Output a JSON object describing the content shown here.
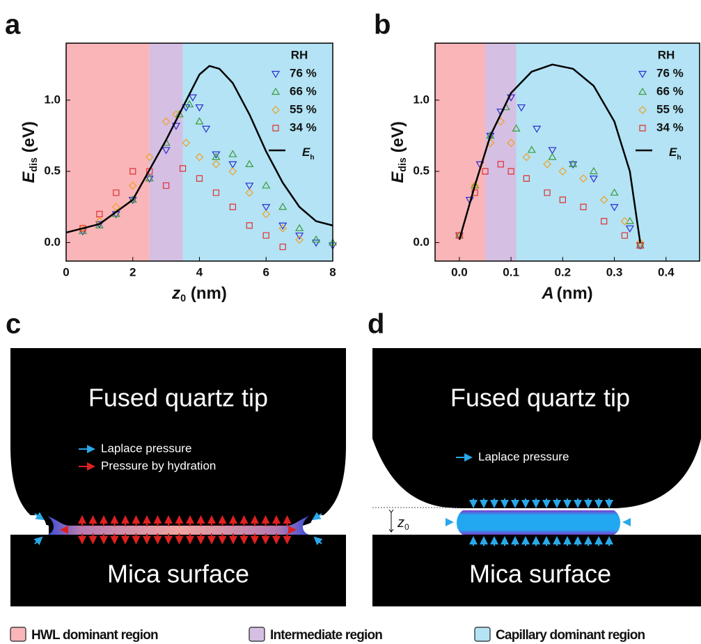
{
  "chart_data": [
    {
      "type": "scatter",
      "panel": "a",
      "x_label": "z0 (nm)",
      "y_label": "Edis (eV)",
      "xlim": [
        0,
        8
      ],
      "ylim": [
        -0.13,
        1.4
      ],
      "xticks": [
        0,
        2,
        4,
        6,
        8
      ],
      "yticks": [
        {
          "value": 0,
          "label": "0.0"
        },
        {
          "value": 0.5,
          "label": "0.5"
        },
        {
          "value": 1,
          "label": "1.0"
        }
      ],
      "regions": [
        [
          0,
          2.5
        ],
        [
          2.5,
          3.5
        ],
        [
          3.5,
          8
        ]
      ],
      "legend_title": "RH",
      "series": [
        {
          "name": "76 %",
          "color": "#2b2bd0",
          "marker": "triangle-down",
          "x": [
            0.5,
            1,
            1.5,
            2,
            2.5,
            3,
            3.3,
            3.6,
            3.8,
            4,
            4.2,
            4.5,
            5,
            5.5,
            6,
            6.5,
            7,
            7.5,
            8
          ],
          "values": [
            0.08,
            0.13,
            0.2,
            0.3,
            0.45,
            0.65,
            0.82,
            0.95,
            1.02,
            0.95,
            0.8,
            0.62,
            0.55,
            0.4,
            0.25,
            0.12,
            0.05,
            0,
            -0.02
          ]
        },
        {
          "name": "66 %",
          "color": "#3a9a3a",
          "marker": "triangle-up",
          "x": [
            0.5,
            1,
            1.5,
            2,
            2.5,
            3,
            3.4,
            3.7,
            4,
            4.5,
            5,
            5.5,
            6,
            6.5,
            7,
            7.5,
            8
          ],
          "values": [
            0.08,
            0.12,
            0.2,
            0.3,
            0.45,
            0.7,
            0.9,
            0.97,
            0.85,
            0.6,
            0.62,
            0.55,
            0.4,
            0.25,
            0.1,
            0.02,
            0
          ]
        },
        {
          "name": "55 %",
          "color": "#f0a020",
          "marker": "diamond",
          "x": [
            0.5,
            1,
            1.5,
            2,
            2.5,
            3,
            3.3,
            3.6,
            4,
            4.5,
            5,
            5.5,
            6,
            6.5,
            7
          ],
          "values": [
            0.1,
            0.15,
            0.25,
            0.4,
            0.6,
            0.85,
            0.9,
            0.7,
            0.6,
            0.55,
            0.5,
            0.35,
            0.2,
            0.1,
            0.02
          ]
        },
        {
          "name": "34 %",
          "color": "#e03030",
          "marker": "square",
          "x": [
            0.5,
            1,
            1.5,
            2,
            2.5,
            3,
            3.5,
            4,
            4.5,
            5,
            5.5,
            6,
            6.5
          ],
          "values": [
            0.1,
            0.2,
            0.35,
            0.5,
            0.5,
            0.4,
            0.52,
            0.45,
            0.35,
            0.25,
            0.12,
            0.05,
            -0.03
          ]
        },
        {
          "name": "Eh",
          "color": "#000000",
          "marker": "line",
          "x": [
            0,
            1,
            2,
            3,
            3.5,
            4,
            4.3,
            4.6,
            5,
            5.5,
            6,
            6.5,
            7,
            7.5,
            8
          ],
          "values": [
            0.07,
            0.13,
            0.3,
            0.72,
            0.95,
            1.18,
            1.24,
            1.22,
            1.12,
            0.9,
            0.64,
            0.42,
            0.25,
            0.15,
            0.12
          ]
        }
      ]
    },
    {
      "type": "scatter",
      "panel": "b",
      "x_label": "A (nm)",
      "y_label": "Edis (eV)",
      "xlim": [
        -0.047,
        0.465
      ],
      "ylim": [
        -0.13,
        1.4
      ],
      "xticks": [
        {
          "value": 0,
          "label": "0.0"
        },
        {
          "value": 0.1,
          "label": "0.1"
        },
        {
          "value": 0.2,
          "label": "0.2"
        },
        {
          "value": 0.3,
          "label": "0.3"
        },
        {
          "value": 0.4,
          "label": "0.4"
        }
      ],
      "yticks": [
        {
          "value": 0,
          "label": "0.0"
        },
        {
          "value": 0.5,
          "label": "0.5"
        },
        {
          "value": 1,
          "label": "1.0"
        }
      ],
      "regions": [
        [
          -0.047,
          0.05
        ],
        [
          0.05,
          0.11
        ],
        [
          0.11,
          0.465
        ]
      ],
      "legend_title": "RH",
      "series": [
        {
          "name": "76 %",
          "color": "#2b2bd0",
          "marker": "triangle-down",
          "x": [
            0,
            0.02,
            0.04,
            0.06,
            0.08,
            0.1,
            0.12,
            0.15,
            0.18,
            0.22,
            0.26,
            0.3,
            0.33,
            0.35
          ],
          "values": [
            0.05,
            0.3,
            0.55,
            0.75,
            0.92,
            1.02,
            0.95,
            0.8,
            0.65,
            0.55,
            0.45,
            0.25,
            0.1,
            -0.02
          ]
        },
        {
          "name": "66 %",
          "color": "#3a9a3a",
          "marker": "triangle-up",
          "x": [
            0,
            0.03,
            0.06,
            0.09,
            0.11,
            0.14,
            0.18,
            0.22,
            0.26,
            0.3,
            0.33,
            0.35
          ],
          "values": [
            0.05,
            0.4,
            0.75,
            0.95,
            0.8,
            0.65,
            0.6,
            0.55,
            0.5,
            0.35,
            0.15,
            -0.02
          ]
        },
        {
          "name": "55 %",
          "color": "#f0a020",
          "marker": "diamond",
          "x": [
            0,
            0.03,
            0.06,
            0.08,
            0.1,
            0.13,
            0.17,
            0.2,
            0.24,
            0.28,
            0.32,
            0.35
          ],
          "values": [
            0.05,
            0.4,
            0.7,
            0.85,
            0.7,
            0.6,
            0.55,
            0.5,
            0.45,
            0.3,
            0.15,
            0
          ]
        },
        {
          "name": "34 %",
          "color": "#e03030",
          "marker": "square",
          "x": [
            0,
            0.03,
            0.05,
            0.08,
            0.1,
            0.13,
            0.17,
            0.2,
            0.24,
            0.28,
            0.32,
            0.35
          ],
          "values": [
            0.05,
            0.35,
            0.5,
            0.55,
            0.5,
            0.45,
            0.35,
            0.3,
            0.25,
            0.15,
            0.05,
            -0.02
          ]
        },
        {
          "name": "Eh",
          "color": "#000000",
          "marker": "line",
          "x": [
            0,
            0.03,
            0.06,
            0.1,
            0.14,
            0.18,
            0.22,
            0.26,
            0.3,
            0.33,
            0.35
          ],
          "values": [
            0.02,
            0.4,
            0.75,
            1.05,
            1.2,
            1.25,
            1.22,
            1.1,
            0.85,
            0.5,
            0
          ]
        }
      ]
    }
  ],
  "region_legend": [
    {
      "label": "HWL dominant region",
      "color": "#f9b5b8"
    },
    {
      "label": "Intermediate region",
      "color": "#d5bfe3"
    },
    {
      "label": "Capillary dominant region",
      "color": "#b3e3f4"
    }
  ],
  "diagrams": [
    {
      "panel": "c",
      "tip_label": "Fused quartz tip",
      "surface_label": "Mica surface",
      "legend": [
        "Laplace pressure",
        "Pressure by hydration"
      ]
    },
    {
      "panel": "d",
      "tip_label": "Fused quartz tip",
      "surface_label": "Mica surface",
      "legend": [
        "Laplace pressure"
      ],
      "gap_label": "z0"
    }
  ]
}
